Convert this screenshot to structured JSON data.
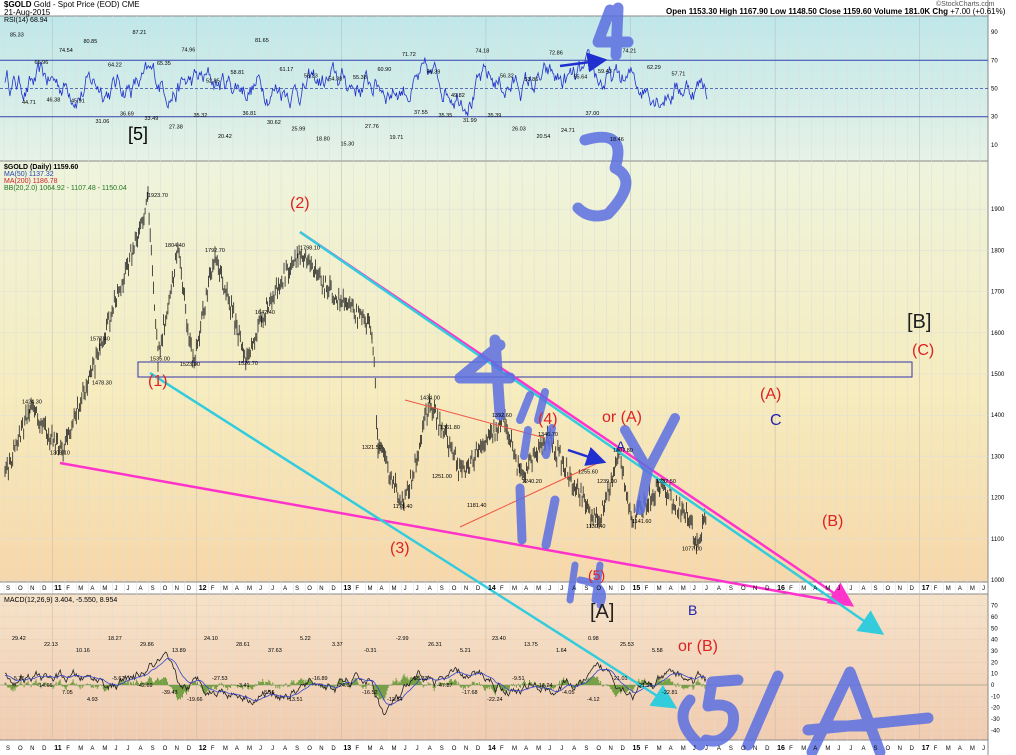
{
  "header": {
    "symbol": "$GOLD",
    "name": "Gold - Spot Price (EOD)",
    "exchange": "CME",
    "date": "21-Aug-2015",
    "open_label": "Open",
    "open": "1153.30",
    "high_label": "High",
    "high": "1167.90",
    "low_label": "Low",
    "low": "1148.50",
    "close_label": "Close",
    "close": "1159.60",
    "volume_label": "Volume",
    "volume": "181.0K",
    "chg_label": "Chg",
    "chg": "+7.00 (+0.61%)",
    "brand": "©StockCharts.com"
  },
  "rsi_legend": "RSI(14) 68.94",
  "price_legend": {
    "title": "$GOLD (Daily) 1159.60",
    "ma50": "MA(50) 1137.32",
    "ma200": "MA(200) 1186.78",
    "bb": "BB(20,2.0) 1064.92 - 1107.48 - 1150.04"
  },
  "macd_legend": "MACD(12,26,9) 3.404, -5.550, 8.954",
  "colors": {
    "magenta": "#ff33cc",
    "cyan": "#33ccdd",
    "red": "#dd2222",
    "navy": "#2222aa",
    "scrawl": "#5a6ee0"
  },
  "chart_data": [
    {
      "type": "line",
      "panel": "RSI",
      "ylim": [
        0,
        100
      ],
      "reference_levels": [
        30,
        50,
        70
      ],
      "right_ticks": [
        "90",
        "70",
        "50",
        "30",
        "10"
      ],
      "annotations": [
        {
          "v": 85.33,
          "t": "85.33"
        },
        {
          "v": 65.96,
          "t": "65.96"
        },
        {
          "v": 74.54,
          "t": "74.54"
        },
        {
          "v": 80.85,
          "t": "80.85"
        },
        {
          "v": 64.22,
          "t": "64.22"
        },
        {
          "v": 87.21,
          "t": "87.21"
        },
        {
          "v": 65.35,
          "t": "65.35"
        },
        {
          "v": 74.96,
          "t": "74.96"
        },
        {
          "v": 52.85,
          "t": "52.85"
        },
        {
          "v": 58.81,
          "t": "58.81"
        },
        {
          "v": 81.65,
          "t": "81.65"
        },
        {
          "v": 61.17,
          "t": "61.17"
        },
        {
          "v": 56.23,
          "t": "56.23"
        },
        {
          "v": 54.38,
          "t": "54.38"
        },
        {
          "v": 55.38,
          "t": "55.38"
        },
        {
          "v": 60.9,
          "t": "60.90"
        },
        {
          "v": 71.72,
          "t": "71.72"
        },
        {
          "v": 59.39,
          "t": "59.39"
        },
        {
          "v": 49.82,
          "t": "49.82"
        },
        {
          "v": 74.18,
          "t": "74.18"
        },
        {
          "v": 56.32,
          "t": "56.32"
        },
        {
          "v": 53.86,
          "t": "53.86"
        },
        {
          "v": 72.86,
          "t": "72.86"
        },
        {
          "v": 55.64,
          "t": "55.64"
        },
        {
          "v": 59.43,
          "t": "59.43"
        },
        {
          "v": 74.21,
          "t": "74.21"
        },
        {
          "v": 62.29,
          "t": "62.29"
        },
        {
          "v": 57.71,
          "t": "57.71"
        },
        {
          "v": 44.71,
          "t": "44.71"
        },
        {
          "v": 46.38,
          "t": "46.38"
        },
        {
          "v": 45.91,
          "t": "45.91"
        },
        {
          "v": 31.06,
          "t": "31.06"
        },
        {
          "v": 36.69,
          "t": "36.69"
        },
        {
          "v": 33.49,
          "t": "33.49"
        },
        {
          "v": 27.38,
          "t": "27.38"
        },
        {
          "v": 35.32,
          "t": "35.32"
        },
        {
          "v": 20.42,
          "t": "20.42"
        },
        {
          "v": 36.81,
          "t": "36.81"
        },
        {
          "v": 30.62,
          "t": "30.62"
        },
        {
          "v": 25.99,
          "t": "25.99"
        },
        {
          "v": 18.8,
          "t": "18.80"
        },
        {
          "v": 15.3,
          "t": "15.30"
        },
        {
          "v": 27.76,
          "t": "27.76"
        },
        {
          "v": 19.71,
          "t": "19.71"
        },
        {
          "v": 37.55,
          "t": "37.55"
        },
        {
          "v": 35.35,
          "t": "35.35"
        },
        {
          "v": 31.99,
          "t": "31.99"
        },
        {
          "v": 35.39,
          "t": "35.39"
        },
        {
          "v": 26.03,
          "t": "26.03"
        },
        {
          "v": 20.54,
          "t": "20.54"
        },
        {
          "v": 24.71,
          "t": "24.71"
        },
        {
          "v": 37.0,
          "t": "37.00"
        },
        {
          "v": 18.46,
          "t": "18.46"
        }
      ]
    },
    {
      "type": "ohlc",
      "panel": "Price",
      "ylim": [
        1000,
        2000
      ],
      "right_ticks": [
        "1900",
        "1800",
        "1700",
        "1600",
        "1500",
        "1400",
        "1300",
        "1200",
        "1100",
        "1000"
      ],
      "price_labels": [
        "1923.70",
        "1804.40",
        "1792.70",
        "1798.10",
        "1642.40",
        "1577.40",
        "1535.00",
        "1523.90",
        "1526.70",
        "1478.30",
        "1424.30",
        "1309.10",
        "1434.00",
        "1392.60",
        "1361.80",
        "1346.70",
        "1321.50",
        "1251.00",
        "1240.20",
        "1255.60",
        "1239.00",
        "1232.50",
        "1181.40",
        "1179.40",
        "1141.60",
        "1130.40",
        "1077.00",
        "1307.80"
      ],
      "wave_labels": [
        "(1)",
        "(2)",
        "(3)",
        "(4)",
        "or (A)",
        "(5)",
        "[A]",
        "A",
        "B",
        "or (B)",
        "(A)",
        "C",
        "(B)",
        "[B]",
        "(C)",
        "[5]",
        "3",
        "4"
      ]
    },
    {
      "type": "line",
      "panel": "MACD",
      "right_ticks": [
        "70",
        "60",
        "50",
        "40",
        "30",
        "20",
        "10",
        "0",
        "-10",
        "-20",
        "-30",
        "-40"
      ],
      "annotations": [
        "29.42",
        "22.13",
        "10.16",
        "18.27",
        "29.86",
        "13.89",
        "24.10",
        "28.61",
        "37.63",
        "5.22",
        "3.37",
        "-0.31",
        "-2.99",
        "26.31",
        "5.21",
        "23.40",
        "13.75",
        "1.64",
        "0.98",
        "25.53",
        "5.58",
        "-5.36",
        "-14.66",
        "7.05",
        "4.93",
        "-5.67",
        "-42.69",
        "-39.43",
        "-19.66",
        "-27.53",
        "-3.41",
        "-8.56",
        "-13.51",
        "-16.89",
        "-24.07",
        "-16.52",
        "-12.84",
        "-55.33",
        "-47.87",
        "-17.68",
        "-22.24",
        "-9.51",
        "-14.24",
        "-4.05",
        "-4.12",
        "-21.01",
        "-21.18",
        "-22.81"
      ]
    }
  ],
  "x_axis": {
    "months": [
      "S",
      "O",
      "N",
      "D",
      "11",
      "F",
      "M",
      "A",
      "M",
      "J",
      "J",
      "A",
      "S",
      "O",
      "N",
      "D",
      "12",
      "F",
      "M",
      "A",
      "M",
      "J",
      "J",
      "A",
      "S",
      "O",
      "N",
      "D",
      "13",
      "F",
      "M",
      "A",
      "M",
      "J",
      "J",
      "A",
      "S",
      "O",
      "N",
      "D",
      "14",
      "F",
      "M",
      "A",
      "M",
      "J",
      "J",
      "A",
      "S",
      "O",
      "N",
      "D",
      "15",
      "F",
      "M",
      "A",
      "M",
      "J",
      "J",
      "A",
      "S",
      "O",
      "N",
      "D",
      "16",
      "F",
      "M",
      "A",
      "M",
      "J",
      "J",
      "A",
      "S",
      "O",
      "N",
      "D",
      "17",
      "F",
      "M",
      "A",
      "M",
      "J"
    ]
  }
}
